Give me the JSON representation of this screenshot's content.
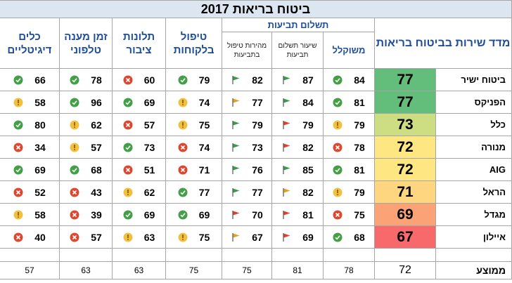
{
  "title": "ביטוח בריאות 2017",
  "header": {
    "index": "מדד שירות בביטוח בריאות",
    "claims": "תשלום תביעות",
    "weighted": "משוקלל",
    "payment_rate": "שיעור תשלום תביעות",
    "speed": "מהירות טיפול בתביעות",
    "service": "טיפול בלקוחות",
    "complaints": "תלונות ציבור",
    "phone": "זמן מענה טלפוני",
    "digital": "כלים דיגיטליים"
  },
  "table": {
    "rows": [
      {
        "name": "ביטוח ישיר",
        "score": 77,
        "score_color": "#63be7b",
        "cells": [
          {
            "value": 84,
            "icon": "check"
          },
          {
            "value": 87,
            "icon": "flag-green"
          },
          {
            "value": 82,
            "icon": "flag-green"
          },
          {
            "value": 79,
            "icon": "check"
          },
          {
            "value": 60,
            "icon": "x"
          },
          {
            "value": 78,
            "icon": "check"
          },
          {
            "value": 66,
            "icon": "check"
          }
        ]
      },
      {
        "name": "הפניקס",
        "score": 77,
        "score_color": "#63be7b",
        "cells": [
          {
            "value": 81,
            "icon": "check"
          },
          {
            "value": 84,
            "icon": "flag-green"
          },
          {
            "value": 77,
            "icon": "flag-yellow"
          },
          {
            "value": 74,
            "icon": "warn"
          },
          {
            "value": 69,
            "icon": "check"
          },
          {
            "value": 96,
            "icon": "check"
          },
          {
            "value": 58,
            "icon": "warn"
          }
        ]
      },
      {
        "name": "כלל",
        "score": 73,
        "score_color": "#cddd82",
        "cells": [
          {
            "value": 79,
            "icon": "warn"
          },
          {
            "value": 79,
            "icon": "flag-red"
          },
          {
            "value": 79,
            "icon": "flag-green"
          },
          {
            "value": 75,
            "icon": "warn"
          },
          {
            "value": 57,
            "icon": "x"
          },
          {
            "value": 62,
            "icon": "warn"
          },
          {
            "value": 80,
            "icon": "check"
          }
        ]
      },
      {
        "name": "מנורה",
        "score": 72,
        "score_color": "#fee783",
        "cells": [
          {
            "value": 78,
            "icon": "x"
          },
          {
            "value": 82,
            "icon": "flag-red"
          },
          {
            "value": 73,
            "icon": "flag-green"
          },
          {
            "value": 74,
            "icon": "x"
          },
          {
            "value": 73,
            "icon": "check"
          },
          {
            "value": 57,
            "icon": "warn"
          },
          {
            "value": 34,
            "icon": "x"
          }
        ]
      },
      {
        "name": "AIG",
        "score": 72,
        "score_color": "#fee783",
        "cells": [
          {
            "value": 81,
            "icon": "check"
          },
          {
            "value": 85,
            "icon": "flag-green"
          },
          {
            "value": 76,
            "icon": "flag-green"
          },
          {
            "value": 71,
            "icon": "x"
          },
          {
            "value": 51,
            "icon": "x"
          },
          {
            "value": 68,
            "icon": "check"
          },
          {
            "value": 69,
            "icon": "check"
          }
        ]
      },
      {
        "name": "הראל",
        "score": 71,
        "score_color": "#fed680",
        "cells": [
          {
            "value": 79,
            "icon": "warn"
          },
          {
            "value": 82,
            "icon": "flag-yellow"
          },
          {
            "value": 77,
            "icon": "flag-green"
          },
          {
            "value": 77,
            "icon": "check"
          },
          {
            "value": 62,
            "icon": "warn"
          },
          {
            "value": 43,
            "icon": "x"
          },
          {
            "value": 52,
            "icon": "x"
          }
        ]
      },
      {
        "name": "מגדל",
        "score": 69,
        "score_color": "#fba276",
        "cells": [
          {
            "value": 75,
            "icon": "x"
          },
          {
            "value": 81,
            "icon": "flag-red"
          },
          {
            "value": 70,
            "icon": "flag-red"
          },
          {
            "value": 69,
            "icon": "check"
          },
          {
            "value": 69,
            "icon": "check"
          },
          {
            "value": 39,
            "icon": "x"
          },
          {
            "value": 58,
            "icon": "warn"
          }
        ]
      },
      {
        "name": "איילון",
        "score": 67,
        "score_color": "#f8696b",
        "cells": [
          {
            "value": 68,
            "icon": "check"
          },
          {
            "value": 69,
            "icon": "flag-red"
          },
          {
            "value": 67,
            "icon": "flag-yellow"
          },
          {
            "value": 75,
            "icon": "warn"
          },
          {
            "value": 63,
            "icon": "warn"
          },
          {
            "value": 57,
            "icon": "x"
          },
          {
            "value": 40,
            "icon": "x"
          }
        ]
      }
    ],
    "average": {
      "label": "ממוצע",
      "values": [
        72,
        78,
        81,
        75,
        75,
        63,
        63,
        57
      ]
    }
  }
}
